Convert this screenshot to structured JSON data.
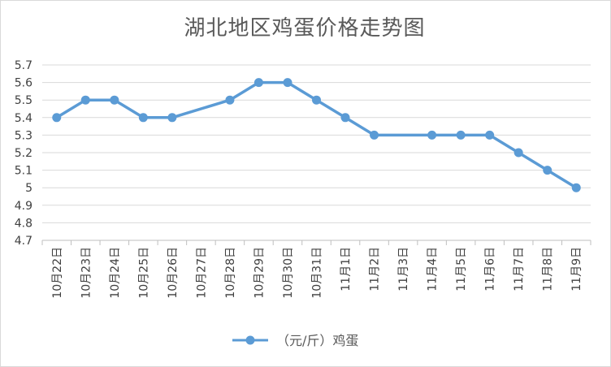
{
  "chart_data": {
    "type": "line",
    "title": "湖北地区鸡蛋价格走势图",
    "xlabel": "",
    "ylabel": "",
    "categories": [
      "10月22日",
      "10月23日",
      "10月24日",
      "10月25日",
      "10月26日",
      "10月27日",
      "10月28日",
      "10月29日",
      "10月30日",
      "10月31日",
      "11月1日",
      "11月2日",
      "11月3日",
      "11月4日",
      "11月5日",
      "11月6日",
      "11月7日",
      "11月8日",
      "11月9日"
    ],
    "series": [
      {
        "name": "（元/斤）鸡蛋",
        "values": [
          5.4,
          5.5,
          5.5,
          5.4,
          5.4,
          null,
          5.5,
          5.6,
          5.6,
          5.5,
          5.4,
          5.3,
          null,
          5.3,
          5.3,
          5.3,
          5.2,
          5.1,
          5.0
        ],
        "color": "#5b9bd5"
      }
    ],
    "yticks": [
      "4.7",
      "4.8",
      "4.9",
      "5",
      "5.1",
      "5.2",
      "5.3",
      "5.4",
      "5.5",
      "5.6",
      "5.7"
    ],
    "ylim": [
      4.7,
      5.7
    ],
    "grid": true,
    "legend_position": "bottom"
  }
}
